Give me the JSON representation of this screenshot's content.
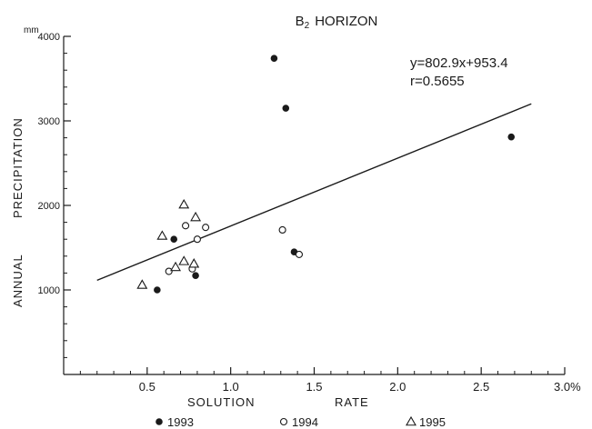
{
  "chart_data": {
    "type": "scatter",
    "title": "B2 HORIZON",
    "title_main": "B",
    "title_sub": "2",
    "title_rest": "HORIZON",
    "y_unit": "mm",
    "ylabel_parts": [
      "ANNUAL",
      "PRECIPITATION"
    ],
    "xlabel_parts": [
      "SOLUTION",
      "RATE"
    ],
    "xlim": [
      0,
      3.0
    ],
    "ylim": [
      0,
      4000
    ],
    "x_ticks": [
      {
        "value": 0.5,
        "label": "0.5"
      },
      {
        "value": 1.0,
        "label": "1.0"
      },
      {
        "value": 1.5,
        "label": "1.5"
      },
      {
        "value": 2.0,
        "label": "2.0"
      },
      {
        "value": 2.5,
        "label": "2.5"
      },
      {
        "value": 3.0,
        "label": "3.0%"
      }
    ],
    "y_ticks": [
      {
        "value": 1000,
        "label": "1000"
      },
      {
        "value": 2000,
        "label": "2000"
      },
      {
        "value": 3000,
        "label": "3000"
      },
      {
        "value": 4000,
        "label": "4000"
      }
    ],
    "grid": false,
    "legend_position": "bottom",
    "annotations": {
      "equation": "y=802.9x+953.4",
      "r_value": "r=0.5655"
    },
    "regression": {
      "slope": 802.9,
      "intercept": 953.4,
      "x_start": 0.2,
      "x_end": 2.8
    },
    "series": [
      {
        "name": "1993",
        "marker": "filled-circle",
        "x": [
          1.26,
          1.33,
          2.68,
          0.66,
          0.56,
          0.79,
          1.38
        ],
        "y": [
          3740,
          3150,
          2810,
          1600,
          1000,
          1170,
          1450
        ]
      },
      {
        "name": "1994",
        "marker": "open-circle",
        "x": [
          0.73,
          0.85,
          0.8,
          0.63,
          0.77,
          1.31,
          1.41
        ],
        "y": [
          1760,
          1740,
          1600,
          1220,
          1250,
          1710,
          1420
        ]
      },
      {
        "name": "1995",
        "marker": "open-triangle",
        "x": [
          0.72,
          0.79,
          0.59,
          0.67,
          0.72,
          0.78,
          0.47
        ],
        "y": [
          2010,
          1860,
          1640,
          1270,
          1340,
          1310,
          1060
        ]
      }
    ]
  }
}
